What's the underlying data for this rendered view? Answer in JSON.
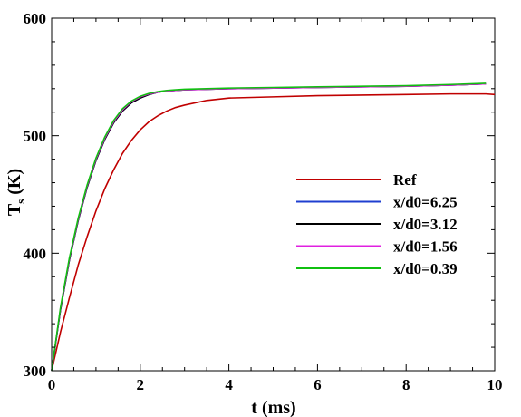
{
  "chart_data": {
    "type": "line",
    "xlabel": "t (ms)",
    "ylabel": "T",
    "ylabel_sub": "s",
    "ylabel_unit": " (K)",
    "xlim": [
      0,
      10
    ],
    "ylim": [
      300,
      600
    ],
    "xticks": [
      0,
      2,
      4,
      6,
      8,
      10
    ],
    "yticks": [
      300,
      400,
      500,
      600
    ],
    "grid": false,
    "legend_position": "center-right",
    "series": [
      {
        "name": "Ref",
        "color": "#c00000",
        "x": [
          0,
          0.2,
          0.4,
          0.6,
          0.8,
          1.0,
          1.2,
          1.4,
          1.6,
          1.8,
          2.0,
          2.2,
          2.4,
          2.6,
          2.8,
          3.0,
          3.5,
          4.0,
          5.0,
          6.0,
          7.0,
          8.0,
          9.0,
          9.8,
          10.0
        ],
        "values": [
          300,
          333,
          362,
          390,
          414,
          436,
          455,
          471,
          485,
          496,
          505,
          512,
          517,
          521,
          524,
          526,
          530,
          532,
          533,
          534,
          534.5,
          535,
          535.5,
          535.5,
          535
        ]
      },
      {
        "name": "x/d0=6.25",
        "color": "#1f3fd0",
        "x": [
          0,
          0.2,
          0.4,
          0.6,
          0.8,
          1.0,
          1.2,
          1.4,
          1.6,
          1.8,
          2.0,
          2.2,
          2.4,
          2.6,
          2.8,
          3.0,
          3.5,
          4.0,
          5.0,
          6.0,
          7.0,
          8.0,
          9.0,
          9.8
        ],
        "values": [
          300,
          352,
          394,
          428,
          456,
          479,
          497,
          511,
          521,
          528,
          532,
          535,
          537,
          538,
          538.5,
          539,
          539.5,
          540,
          540.5,
          541,
          541.5,
          542,
          543,
          544
        ]
      },
      {
        "name": "x/d0=3.12",
        "color": "#000000",
        "x": [
          0,
          0.2,
          0.4,
          0.6,
          0.8,
          1.0,
          1.2,
          1.4,
          1.6,
          1.8,
          2.0,
          2.2,
          2.4,
          2.6,
          2.8,
          3.0,
          3.5,
          4.0,
          5.0,
          6.0,
          7.0,
          8.0,
          9.0,
          9.8
        ],
        "values": [
          300,
          352,
          394,
          428,
          456,
          479,
          497,
          511,
          521,
          528,
          532,
          535,
          537,
          538,
          538.5,
          539,
          539.5,
          540,
          540.5,
          541,
          541.5,
          542,
          543,
          544
        ]
      },
      {
        "name": "x/d0=1.56",
        "color": "#e020e0",
        "x": [
          0,
          0.2,
          0.4,
          0.6,
          0.8,
          1.0,
          1.2,
          1.4,
          1.6,
          1.8,
          2.0,
          2.2,
          2.4,
          2.6,
          2.8,
          3.0,
          3.5,
          4.0,
          5.0,
          6.0,
          7.0,
          8.0,
          9.0,
          9.8
        ],
        "values": [
          300,
          353,
          395,
          429,
          457,
          480,
          498,
          512,
          522,
          529,
          533,
          535.5,
          537,
          538,
          538.5,
          539,
          539.5,
          540,
          540.5,
          541,
          541.5,
          542,
          543,
          544
        ]
      },
      {
        "name": "x/d0=0.39",
        "color": "#10c010",
        "x": [
          0,
          0.2,
          0.4,
          0.6,
          0.8,
          1.0,
          1.2,
          1.4,
          1.6,
          1.8,
          2.0,
          2.2,
          2.4,
          2.6,
          2.8,
          3.0,
          3.5,
          4.0,
          5.0,
          6.0,
          7.0,
          8.0,
          9.0,
          9.8
        ],
        "values": [
          300,
          354,
          396,
          430,
          458,
          481,
          499,
          513,
          523,
          529.5,
          533.5,
          536,
          537.5,
          538.5,
          539,
          539.5,
          540,
          540.5,
          541,
          541.5,
          542,
          542.5,
          543.5,
          544.5
        ]
      }
    ]
  }
}
